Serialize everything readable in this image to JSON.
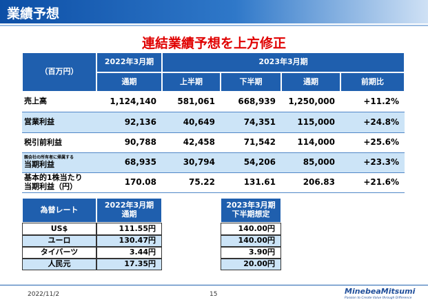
{
  "header": {
    "title": "業績予想"
  },
  "headline": "連結業績予想を上方修正",
  "results_table": {
    "unit": "（百万円）",
    "period_headers": [
      "2022年3月期",
      "2023年3月期"
    ],
    "sub_headers": [
      "通期",
      "上半期",
      "下半期",
      "通期",
      "前期比"
    ],
    "rows": [
      {
        "label": [
          "売上高"
        ],
        "cells": [
          "1,124,140",
          "581,061",
          "668,939",
          "1,250,000",
          "+11.2%"
        ]
      },
      {
        "label": [
          "営業利益"
        ],
        "cells": [
          "92,136",
          "40,649",
          "74,351",
          "115,000",
          "+24.8%"
        ]
      },
      {
        "label": [
          "税引前利益"
        ],
        "cells": [
          "90,788",
          "42,458",
          "71,542",
          "114,000",
          "+25.6%"
        ]
      },
      {
        "label": [
          "親会社の所有者に帰属する",
          "当期利益"
        ],
        "cells": [
          "68,935",
          "30,794",
          "54,206",
          "85,000",
          "+23.3%"
        ]
      },
      {
        "label": [
          "基本的1株当たり",
          "当期利益（円）"
        ],
        "cells": [
          "170.08",
          "75.22",
          "131.61",
          "206.83",
          "+21.6%"
        ]
      }
    ]
  },
  "fx_table": {
    "header": "為替レート",
    "fy2022_header": [
      "2022年3月期",
      "通期"
    ],
    "fy2023_header": [
      "2023年3月期",
      "下半期想定"
    ],
    "rows": [
      {
        "currency": "US$",
        "fy2022": "111.55円",
        "fy2023": "140.00円"
      },
      {
        "currency": "ユーロ",
        "fy2022": "130.47円",
        "fy2023": "140.00円"
      },
      {
        "currency": "タイバーツ",
        "fy2022": "3.44円",
        "fy2023": "3.90円"
      },
      {
        "currency": "人民元",
        "fy2022": "17.35円",
        "fy2023": "20.00円"
      }
    ]
  },
  "footer": {
    "date": "2022/11/2",
    "page": "15",
    "logo": "MinebeaMitsumi",
    "tagline": "Passion to Create Value through Difference"
  }
}
